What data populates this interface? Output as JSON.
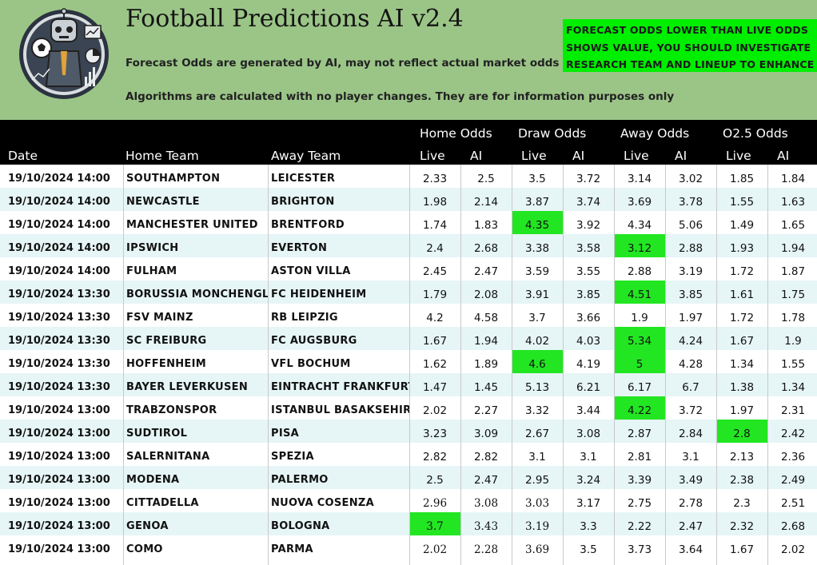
{
  "header": {
    "title": "Football Predictions AI v2.4",
    "subtitle1": "Forecast Odds are generated by AI, may not reflect actual market odds",
    "subtitle2": "Algorithms are calculated with no player changes. They are for information purposes only",
    "notice": [
      "FORECAST ODDS LOWER THAN LIVE ODDS",
      "SHOWS VALUE, YOU SHOULD INVESTIGATE",
      "RESEARCH TEAM AND LINEUP TO ENHANCE"
    ],
    "notice_color": "#00ee00",
    "banner_color": "#9bc587"
  },
  "table": {
    "groups": [
      "Home Odds",
      "Draw Odds",
      "Away Odds",
      "O2.5 Odds"
    ],
    "col_date": "Date",
    "col_home": "Home Team",
    "col_away": "Away Team",
    "sub_live": "Live",
    "sub_ai": "AI",
    "highlight_color": "#22e622",
    "rows": [
      {
        "date": "19/10/2024 14:00",
        "home": "SOUTHAMPTON",
        "away": "LEICESTER",
        "odds": [
          "2.33",
          "2.5",
          "3.5",
          "3.72",
          "3.14",
          "3.02",
          "1.85",
          "1.84"
        ],
        "hl": []
      },
      {
        "date": "19/10/2024 14:00",
        "home": "NEWCASTLE",
        "away": "BRIGHTON",
        "odds": [
          "1.98",
          "2.14",
          "3.87",
          "3.74",
          "3.69",
          "3.78",
          "1.55",
          "1.63"
        ],
        "hl": []
      },
      {
        "date": "19/10/2024 14:00",
        "home": "MANCHESTER UNITED",
        "away": "BRENTFORD",
        "odds": [
          "1.74",
          "1.83",
          "4.35",
          "3.92",
          "4.34",
          "5.06",
          "1.49",
          "1.65"
        ],
        "hl": [
          2
        ]
      },
      {
        "date": "19/10/2024 14:00",
        "home": "IPSWICH",
        "away": "EVERTON",
        "odds": [
          "2.4",
          "2.68",
          "3.38",
          "3.58",
          "3.12",
          "2.88",
          "1.93",
          "1.94"
        ],
        "hl": [
          4
        ]
      },
      {
        "date": "19/10/2024 14:00",
        "home": "FULHAM",
        "away": "ASTON VILLA",
        "odds": [
          "2.45",
          "2.47",
          "3.59",
          "3.55",
          "2.88",
          "3.19",
          "1.72",
          "1.87"
        ],
        "hl": []
      },
      {
        "date": "19/10/2024 13:30",
        "home": "BORUSSIA MONCHENGLADBACH",
        "away": "FC HEIDENHEIM",
        "odds": [
          "1.79",
          "2.08",
          "3.91",
          "3.85",
          "4.51",
          "3.85",
          "1.61",
          "1.75"
        ],
        "hl": [
          4
        ]
      },
      {
        "date": "19/10/2024 13:30",
        "home": "FSV MAINZ",
        "away": "RB LEIPZIG",
        "odds": [
          "4.2",
          "4.58",
          "3.7",
          "3.66",
          "1.9",
          "1.97",
          "1.72",
          "1.78"
        ],
        "hl": []
      },
      {
        "date": "19/10/2024 13:30",
        "home": "SC FREIBURG",
        "away": "FC AUGSBURG",
        "odds": [
          "1.67",
          "1.94",
          "4.02",
          "4.03",
          "5.34",
          "4.24",
          "1.67",
          "1.9"
        ],
        "hl": [
          4
        ]
      },
      {
        "date": "19/10/2024 13:30",
        "home": "HOFFENHEIM",
        "away": "VFL BOCHUM",
        "odds": [
          "1.62",
          "1.89",
          "4.6",
          "4.19",
          "5",
          "4.28",
          "1.34",
          "1.55"
        ],
        "hl": [
          2,
          4
        ]
      },
      {
        "date": "19/10/2024 13:30",
        "home": "BAYER LEVERKUSEN",
        "away": "EINTRACHT FRANKFURT",
        "odds": [
          "1.47",
          "1.45",
          "5.13",
          "6.21",
          "6.17",
          "6.7",
          "1.38",
          "1.34"
        ],
        "hl": []
      },
      {
        "date": "19/10/2024 13:00",
        "home": "TRABZONSPOR",
        "away": "ISTANBUL BASAKSEHIR",
        "odds": [
          "2.02",
          "2.27",
          "3.32",
          "3.44",
          "4.22",
          "3.72",
          "1.97",
          "2.31"
        ],
        "hl": [
          4
        ]
      },
      {
        "date": "19/10/2024 13:00",
        "home": "SUDTIROL",
        "away": "PISA",
        "odds": [
          "3.23",
          "3.09",
          "2.67",
          "3.08",
          "2.87",
          "2.84",
          "2.8",
          "2.42"
        ],
        "hl": [
          6
        ]
      },
      {
        "date": "19/10/2024 13:00",
        "home": "SALERNITANA",
        "away": "SPEZIA",
        "odds": [
          "2.82",
          "2.82",
          "3.1",
          "3.1",
          "2.81",
          "3.1",
          "2.13",
          "2.36"
        ],
        "hl": []
      },
      {
        "date": "19/10/2024 13:00",
        "home": "MODENA",
        "away": "PALERMO",
        "odds": [
          "2.5",
          "2.47",
          "2.95",
          "3.24",
          "3.39",
          "3.49",
          "2.38",
          "2.49"
        ],
        "hl": []
      },
      {
        "date": "19/10/2024 13:00",
        "home": "CITTADELLA",
        "away": "NUOVA COSENZA",
        "odds": [
          "2.96",
          "3.08",
          "3.03",
          "3.17",
          "2.75",
          "2.78",
          "2.3",
          "2.51"
        ],
        "hl": [],
        "serif": [
          0,
          1,
          2
        ]
      },
      {
        "date": "19/10/2024 13:00",
        "home": "GENOA",
        "away": "BOLOGNA",
        "odds": [
          "3.7",
          "3.43",
          "3.19",
          "3.3",
          "2.22",
          "2.47",
          "2.32",
          "2.68"
        ],
        "hl": [
          0
        ],
        "serif": [
          0,
          1,
          2
        ]
      },
      {
        "date": "19/10/2024 13:00",
        "home": "COMO",
        "away": "PARMA",
        "odds": [
          "2.02",
          "2.28",
          "3.69",
          "3.5",
          "3.73",
          "3.64",
          "1.67",
          "2.02"
        ],
        "hl": [],
        "serif": [
          0,
          1,
          2
        ]
      }
    ]
  }
}
